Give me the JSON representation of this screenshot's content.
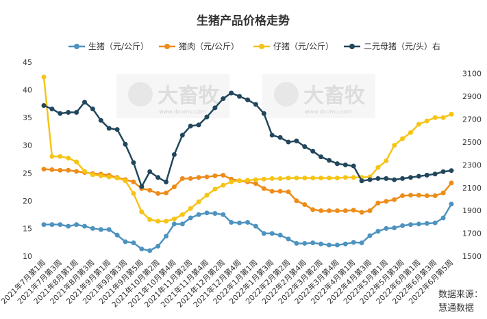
{
  "chart_data": {
    "type": "line",
    "title": "生猪产品价格走势",
    "categories": [
      "2021年7月第1周",
      null,
      "2021年7月第3周",
      null,
      "2021年8月第1周",
      null,
      "2021年8月第3周",
      null,
      "2021年9月第1周",
      null,
      "2021年9月第3周",
      null,
      "2021年9月第5周",
      null,
      "2021年10月第2周",
      null,
      "2021年10月第4周",
      null,
      "2021年11月第2周",
      null,
      "2021年11月第4周",
      null,
      "2021年12月第2周",
      null,
      "2021年12月第4周",
      null,
      "2022年1月第1周",
      null,
      "2022年1月第3周",
      null,
      "2022年2月第2周",
      null,
      "2022年2月第4周",
      null,
      "2022年3月第2周",
      null,
      "2022年3月第4周",
      null,
      "2022年4月第1周",
      null,
      "2022年4月第3周",
      null,
      "2022年5月第1周",
      null,
      "2022年5月第3周",
      null,
      "2022年6月第1周",
      null,
      "2022年6月第3周",
      null,
      "2022年6月第5周"
    ],
    "series": [
      {
        "name": "生猪（元/公斤）",
        "color": "#4d93bf",
        "values": [
          15.7,
          15.7,
          15.7,
          15.4,
          15.7,
          15.4,
          15.0,
          14.8,
          14.8,
          13.8,
          12.6,
          12.4,
          11.3,
          11.0,
          11.8,
          13.6,
          15.8,
          15.8,
          16.9,
          17.5,
          17.8,
          17.7,
          17.5,
          16.1,
          16.0,
          16.1,
          15.4,
          14.1,
          14.1,
          13.8,
          13.1,
          12.3,
          12.3,
          12.4,
          12.2,
          12.0,
          12.0,
          12.2,
          12.5,
          12.4,
          13.7,
          14.5,
          15.0,
          15.1,
          15.5,
          15.7,
          15.8,
          15.9,
          16.0,
          16.9,
          19.4
        ]
      },
      {
        "name": "猪肉（元/公斤）",
        "color": "#ee8c1a",
        "values": [
          25.7,
          25.6,
          25.5,
          25.5,
          25.3,
          25.1,
          24.9,
          24.8,
          24.6,
          24.2,
          23.8,
          23.4,
          22.2,
          21.9,
          21.3,
          21.4,
          22.5,
          24.0,
          24.0,
          24.2,
          24.3,
          24.5,
          24.6,
          23.9,
          23.6,
          23.4,
          23.1,
          22.2,
          21.7,
          21.7,
          21.6,
          20.0,
          19.3,
          18.4,
          18.2,
          18.2,
          18.2,
          18.2,
          18.3,
          17.9,
          18.2,
          19.6,
          19.9,
          20.2,
          20.9,
          21.0,
          21.0,
          20.9,
          20.9,
          21.4,
          23.2
        ]
      },
      {
        "name": "仔猪（元/公斤）",
        "color": "#f6c417",
        "values": [
          42.3,
          28.0,
          28.0,
          27.7,
          27.0,
          25.3,
          24.7,
          24.5,
          24.3,
          24.1,
          23.6,
          21.3,
          18.0,
          16.6,
          16.3,
          16.3,
          16.7,
          17.5,
          18.6,
          19.8,
          21.0,
          22.1,
          22.8,
          23.4,
          23.6,
          23.7,
          23.8,
          23.9,
          24.0,
          24.0,
          24.1,
          24.1,
          24.1,
          24.1,
          24.1,
          24.1,
          24.1,
          24.2,
          24.2,
          24.2,
          24.3,
          26.0,
          27.2,
          30.0,
          31.2,
          32.3,
          33.8,
          34.4,
          35.0,
          35.0,
          35.6
        ]
      },
      {
        "name": "二元母猪（元/头）右",
        "color": "#22475d",
        "axis": "y2",
        "values": [
          2820,
          2790,
          2750,
          2760,
          2760,
          2850,
          2790,
          2690,
          2620,
          2610,
          2480,
          2320,
          2110,
          2240,
          2190,
          2150,
          2390,
          2560,
          2640,
          2650,
          2720,
          2800,
          2880,
          2930,
          2900,
          2870,
          2830,
          2750,
          2560,
          2540,
          2500,
          2510,
          2460,
          2420,
          2370,
          2340,
          2310,
          2300,
          2290,
          2160,
          2170,
          2180,
          2180,
          2170,
          2180,
          2190,
          2200,
          2210,
          2220,
          2240,
          2250
        ]
      }
    ],
    "ylim": [
      10,
      45
    ],
    "yticks": [
      10,
      15,
      20,
      25,
      30,
      35,
      40,
      45
    ],
    "y2lim": [
      1500,
      3200
    ],
    "y2ticks": [
      1500,
      1700,
      1900,
      2100,
      2300,
      2500,
      2700,
      2900,
      3100
    ],
    "grid": false,
    "legend": "top",
    "watermark": "大畜牧",
    "watermark_url": "www.dxumu.com",
    "source": [
      "数据来源：",
      "慧通数据"
    ]
  }
}
